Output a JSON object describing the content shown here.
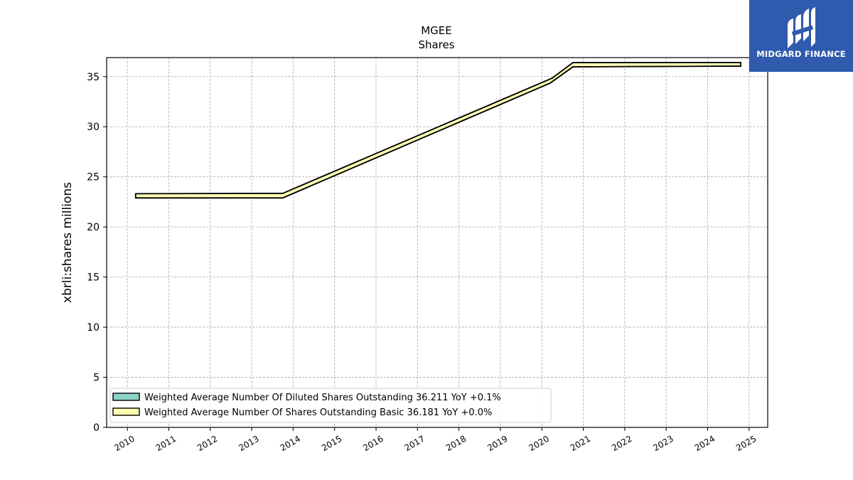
{
  "chart_data": {
    "type": "area",
    "title": "MGEE",
    "subtitle": "Shares",
    "xlabel": "",
    "ylabel": "xbrli:shares millions",
    "xlim": [
      2009.5,
      2025.45
    ],
    "ylim": [
      0,
      36.9
    ],
    "x_ticks": [
      "2010",
      "2011",
      "2012",
      "2013",
      "2014",
      "2015",
      "2016",
      "2017",
      "2018",
      "2019",
      "2020",
      "2021",
      "2022",
      "2023",
      "2024",
      "2025"
    ],
    "y_ticks": [
      "0",
      "5",
      "10",
      "15",
      "20",
      "25",
      "30",
      "35"
    ],
    "grid": true,
    "legend_position": "lower-left",
    "series": [
      {
        "name": "Weighted Average Number Of Diluted Shares Outstanding",
        "legend_label": "Weighted Average Number Of Diluted Shares Outstanding  36.211 YoY +0.1%",
        "color": "#8dd3c7",
        "x": [
          2010.2,
          2013.75,
          2020.25,
          2020.75,
          2024.8
        ],
        "y": [
          23.32,
          23.35,
          34.85,
          36.4,
          36.41
        ]
      },
      {
        "name": "Weighted Average Number Of Shares Outstanding Basic",
        "legend_label": "Weighted Average Number Of Shares Outstanding Basic  36.181 YoY +0.0%",
        "color": "#ffffb3",
        "x": [
          2010.2,
          2013.75,
          2020.2,
          2020.75,
          2024.8
        ],
        "y": [
          22.9,
          22.9,
          34.35,
          35.98,
          36.05
        ]
      }
    ]
  },
  "logo": {
    "text": "MIDGARD FINANCE",
    "background": "#2f5aae"
  }
}
